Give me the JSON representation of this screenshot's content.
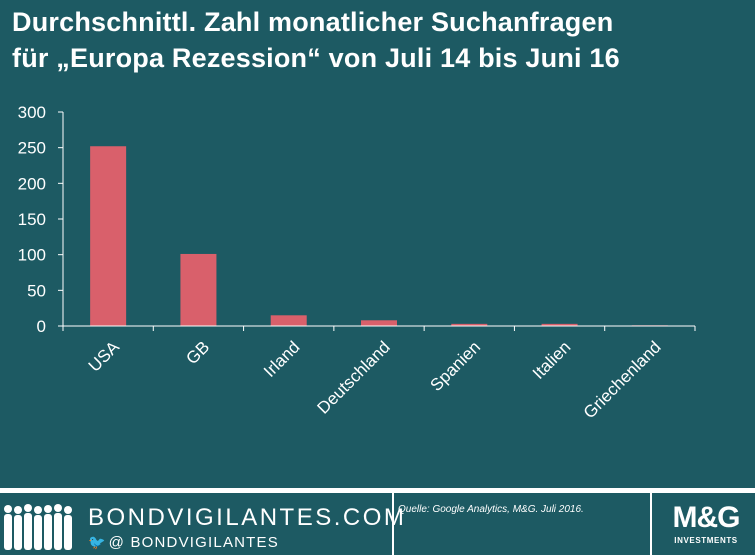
{
  "header": {
    "title_line1": "Durchschnittl. Zahl monatlicher Suchanfragen",
    "title_line2": "für „Europa Rezession“ von Juli 14 bis Juni 16"
  },
  "chart_data": {
    "type": "bar",
    "title": "Durchschnittl. Zahl monatlicher Suchanfragen für „Europa Rezession“ von Juli 14 bis Juni 16",
    "xlabel": "",
    "ylabel": "",
    "categories": [
      "USA",
      "GB",
      "Irland",
      "Deutschland",
      "Spanien",
      "Italien",
      "Griechenland"
    ],
    "values": [
      252,
      101,
      15,
      8,
      3,
      3,
      1
    ],
    "ylim": [
      0,
      300
    ],
    "yticks": [
      "0",
      "50",
      "100",
      "150",
      "200",
      "250",
      "300"
    ],
    "grid": false,
    "bar_color": "#d9606b"
  },
  "footer": {
    "brand": "BONDVIGILANTES.COM",
    "social_prefix": "@",
    "handle": "BONDVIGILANTES",
    "source": "Quelle: Google Analytics, M&G. Juli 2016.",
    "logo_main": "M&G",
    "logo_sub": "INVESTMENTS"
  },
  "colors": {
    "background": "#1d5a63",
    "bar": "#d9606b",
    "axis": "#ffffff",
    "text": "#ffffff"
  }
}
